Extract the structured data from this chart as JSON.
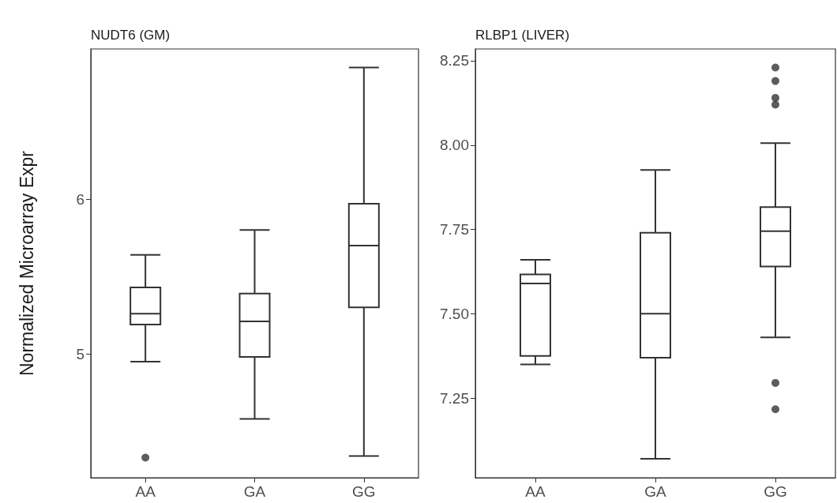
{
  "chart_data": [
    {
      "type": "box",
      "title": "NUDT6 (GM)",
      "ylabel": "Normalized Microarray Expr",
      "categories": [
        "AA",
        "GA",
        "GG"
      ],
      "boxes": [
        {
          "low": 4.95,
          "q1": 5.19,
          "median": 5.26,
          "q3": 5.43,
          "high": 5.64,
          "outliers": [
            4.33
          ]
        },
        {
          "low": 4.58,
          "q1": 4.98,
          "median": 5.21,
          "q3": 5.39,
          "high": 5.8
        },
        {
          "low": 4.34,
          "q1": 5.3,
          "median": 5.7,
          "q3": 5.97,
          "high": 6.85
        }
      ],
      "ylim": [
        4.2,
        6.97
      ],
      "yticks": [
        5,
        6
      ]
    },
    {
      "type": "box",
      "title": "RLBP1 (LIVER)",
      "categories": [
        "AA",
        "GA",
        "GG"
      ],
      "boxes": [
        {
          "low": 7.35,
          "q1": 7.375,
          "median": 7.59,
          "q3": 7.617,
          "high": 7.66
        },
        {
          "low": 7.07,
          "q1": 7.37,
          "median": 7.5,
          "q3": 7.74,
          "high": 7.926
        },
        {
          "low": 7.43,
          "q1": 7.64,
          "median": 7.745,
          "q3": 7.816,
          "high": 8.006,
          "outliers": [
            8.23,
            8.19,
            8.14,
            8.12,
            7.295,
            7.217
          ]
        }
      ],
      "ylim": [
        7.014,
        8.285
      ],
      "yticks": [
        7.25,
        {
          "value": 7.5,
          "label": "7.50"
        },
        7.75,
        {
          "value": 8,
          "label": "8.00"
        },
        8.25
      ]
    }
  ]
}
